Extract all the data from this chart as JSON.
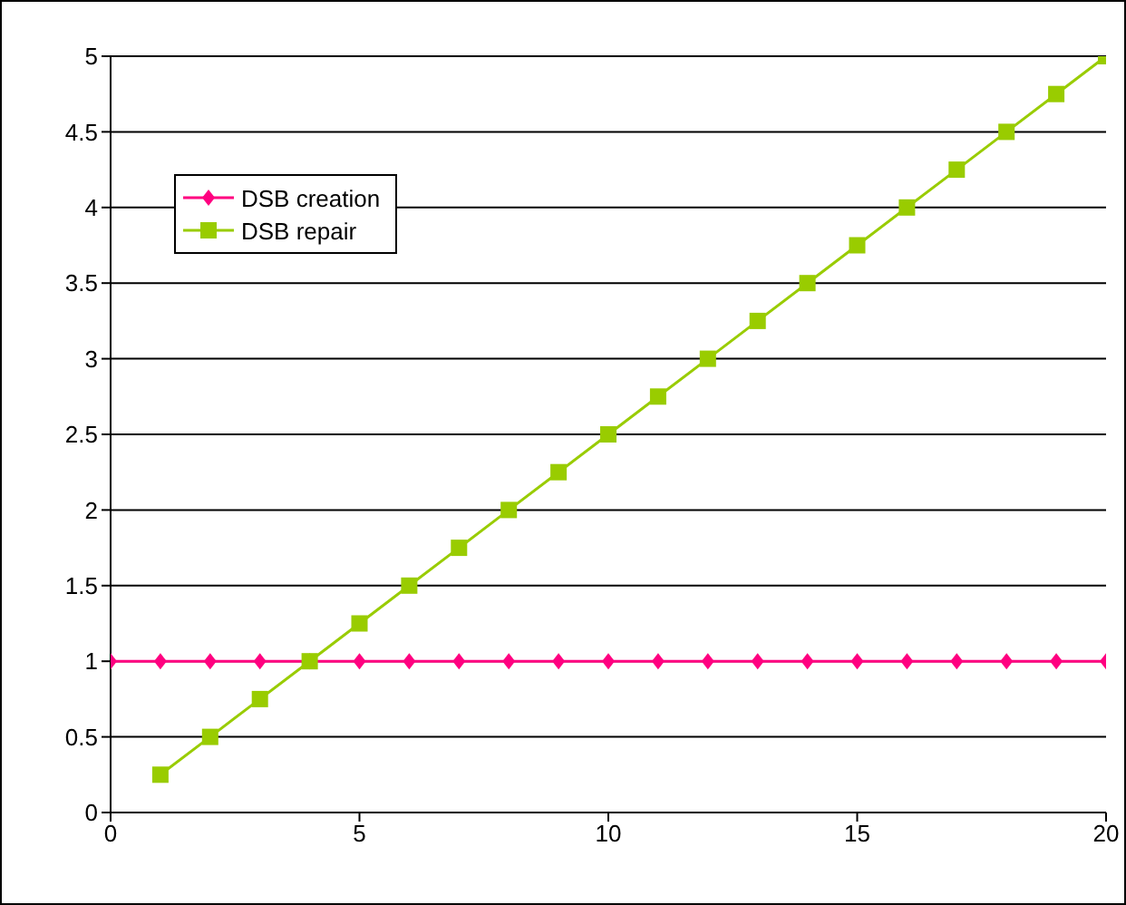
{
  "chart_data": {
    "type": "line",
    "x": [
      0,
      1,
      2,
      3,
      4,
      5,
      6,
      7,
      8,
      9,
      10,
      11,
      12,
      13,
      14,
      15,
      16,
      17,
      18,
      19,
      20
    ],
    "series": [
      {
        "name": "DSB creation",
        "color": "#ff0080",
        "marker": "diamond",
        "values": [
          1,
          1,
          1,
          1,
          1,
          1,
          1,
          1,
          1,
          1,
          1,
          1,
          1,
          1,
          1,
          1,
          1,
          1,
          1,
          1,
          1
        ]
      },
      {
        "name": "DSB repair",
        "color": "#99cc00",
        "marker": "square",
        "values": [
          null,
          0.25,
          0.5,
          0.75,
          1,
          1.25,
          1.5,
          1.75,
          2,
          2.25,
          2.5,
          2.75,
          3,
          3.25,
          3.5,
          3.75,
          4,
          4.25,
          4.5,
          4.75,
          5
        ]
      }
    ],
    "xlim": [
      0,
      20
    ],
    "xticks": [
      0,
      5,
      10,
      15,
      20
    ],
    "ylim": [
      0,
      5
    ],
    "yticks": [
      0,
      0.5,
      1,
      1.5,
      2,
      2.5,
      3,
      3.5,
      4,
      4.5,
      5
    ],
    "grid": "y",
    "legend": "top left",
    "line_style": "solid"
  }
}
